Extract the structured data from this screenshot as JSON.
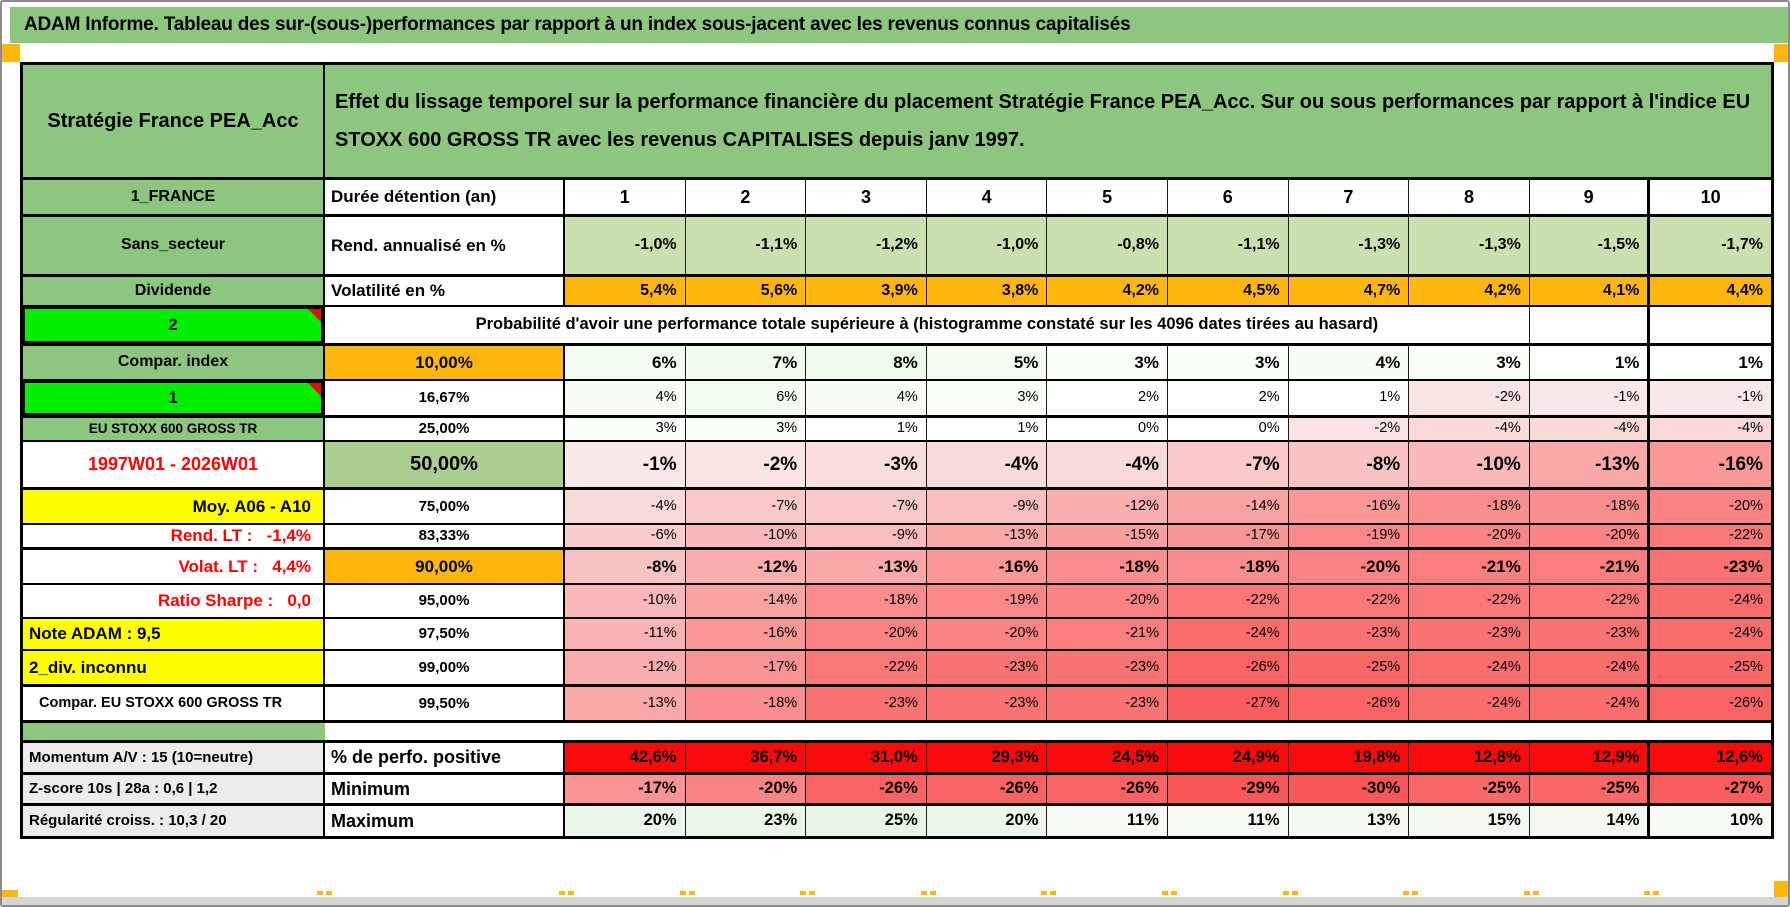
{
  "palette": {
    "green": "#8DC67E",
    "bright_green": "#00F000",
    "orange": "#FFB60D",
    "yellow": "#FFFF00",
    "red_row": "#FA0A0A",
    "red_text": "#FF0000",
    "light_green_row": "#CBE0AF",
    "mid_green_cell": "#A9CE90",
    "gray_label": "#EDEBEB"
  },
  "title": "ADAM Informe. Tableau des sur-(sous-)performances par rapport à un index sous-jacent avec les revenus connus capitalisés",
  "header": {
    "strategy": "Stratégie France PEA_Acc",
    "description": "Effet du lissage temporel sur la performance financière du placement Stratégie France PEA_Acc. Sur ou sous performances par rapport à l'indice EU STOXX 600 GROSS TR avec les revenus CAPITALISES depuis janv 1997."
  },
  "table": {
    "rows": [
      {
        "label": "1_FRANCE",
        "labelStyle": "green",
        "col2": "Durée détention (an)",
        "col2Style": "plain-left",
        "cellStyle": "duration",
        "values": [
          "1",
          "2",
          "3",
          "4",
          "5",
          "6",
          "7",
          "8",
          "9",
          "10"
        ]
      },
      {
        "label": "Sans_secteur",
        "labelStyle": "green",
        "col2": "Rend. annualisé en %",
        "col2Style": "plain-left",
        "cellStyle": "lightgreen",
        "values": [
          "-1,0%",
          "-1,1%",
          "-1,2%",
          "-1,0%",
          "-0,8%",
          "-1,1%",
          "-1,3%",
          "-1,3%",
          "-1,5%",
          "-1,7%"
        ]
      },
      {
        "label": "Dividende",
        "labelStyle": "green",
        "col2": "Volatilité en %",
        "col2Style": "plain-left",
        "cellStyle": "orange",
        "values": [
          "5,4%",
          "5,6%",
          "3,9%",
          "3,8%",
          "4,2%",
          "4,5%",
          "4,7%",
          "4,2%",
          "4,1%",
          "4,4%"
        ]
      },
      {
        "label": "2",
        "labelStyle": "bright",
        "span": "Probabilité d'avoir une performance totale supérieure à (histogramme constaté sur les 4096 dates tirées au hasard)",
        "values": [
          "",
          ""
        ]
      },
      {
        "label": "Compar. index",
        "labelStyle": "green",
        "col2": "10,00%",
        "col2Style": "orange-bold",
        "cellStyle": "tint-bold",
        "values": [
          6,
          7,
          8,
          5,
          3,
          3,
          4,
          3,
          1,
          1
        ]
      },
      {
        "label": "1",
        "labelStyle": "bright",
        "col2": "16,67%",
        "col2Style": "plain",
        "cellStyle": "tint",
        "values": [
          4,
          6,
          4,
          3,
          2,
          2,
          1,
          -2,
          -1,
          -1
        ]
      },
      {
        "label": "EU STOXX 600 GROSS TR",
        "labelStyle": "green-small",
        "col2": "25,00%",
        "col2Style": "plain",
        "cellStyle": "tint",
        "values": [
          3,
          3,
          1,
          1,
          0,
          0,
          -2,
          -4,
          -4,
          -4
        ]
      },
      {
        "label": "1997W01 - 2026W01",
        "labelStyle": "red-center",
        "col2": "50,00%",
        "col2Style": "green-big",
        "cellStyle": "tint-big",
        "values": [
          -1,
          -2,
          -3,
          -4,
          -4,
          -7,
          -8,
          -10,
          -13,
          -16
        ]
      },
      {
        "label": "Moy. A06 - A10",
        "labelStyle": "yellow-right",
        "col2": "75,00%",
        "col2Style": "plain",
        "cellStyle": "tint",
        "values": [
          -4,
          -7,
          -7,
          -9,
          -12,
          -14,
          -16,
          -18,
          -18,
          -20
        ]
      },
      {
        "label": "Rend. LT :   -1,4%",
        "labelStyle": "red-right",
        "col2": "83,33%",
        "col2Style": "plain",
        "cellStyle": "tint",
        "values": [
          -6,
          -10,
          -9,
          -13,
          -15,
          -17,
          -19,
          -20,
          -20,
          -22
        ]
      },
      {
        "label": "Volat. LT :   4,4%",
        "labelStyle": "red-right",
        "col2": "90,00%",
        "col2Style": "orange-bold",
        "cellStyle": "tint-bold",
        "values": [
          -8,
          -12,
          -13,
          -16,
          -18,
          -18,
          -20,
          -21,
          -21,
          -23
        ]
      },
      {
        "label": "Ratio Sharpe :   0,0",
        "labelStyle": "red-right",
        "col2": "95,00%",
        "col2Style": "plain",
        "cellStyle": "tint",
        "values": [
          -10,
          -14,
          -18,
          -19,
          -20,
          -22,
          -22,
          -22,
          -22,
          -24
        ]
      },
      {
        "label": "Note ADAM : 9,5",
        "labelStyle": "yellow-left",
        "col2": "97,50%",
        "col2Style": "plain",
        "cellStyle": "tint",
        "values": [
          -11,
          -16,
          -20,
          -20,
          -21,
          -24,
          -23,
          -23,
          -23,
          -24
        ]
      },
      {
        "label": "2_div. inconnu",
        "labelStyle": "yellow-left",
        "col2": "99,00%",
        "col2Style": "plain",
        "cellStyle": "tint",
        "values": [
          -12,
          -17,
          -22,
          -23,
          -23,
          -26,
          -25,
          -24,
          -24,
          -25
        ]
      },
      {
        "label": "Compar. EU STOXX 600 GROSS TR",
        "labelStyle": "plain-left",
        "col2": "99,50%",
        "col2Style": "plain",
        "cellStyle": "tint",
        "values": [
          -13,
          -18,
          -23,
          -23,
          -23,
          -27,
          -26,
          -24,
          -24,
          -26
        ]
      },
      {
        "separator": true
      },
      {
        "label": "Momentum A/V : 15 (10=neutre)",
        "labelStyle": "gray",
        "col2": "% de perfo. positive",
        "col2Style": "plain-left-big",
        "cellStyle": "red",
        "values": [
          "42,6%",
          "36,7%",
          "31,0%",
          "29,3%",
          "24,5%",
          "24,9%",
          "19,8%",
          "12,8%",
          "12,9%",
          "12,6%"
        ]
      },
      {
        "label": "Z-score 10s | 28a : 0,6 | 1,2",
        "labelStyle": "gray",
        "col2": "Minimum",
        "col2Style": "plain-left-big",
        "cellStyle": "min",
        "values": [
          -17,
          -20,
          -26,
          -26,
          -26,
          -29,
          -30,
          -25,
          -25,
          -27
        ]
      },
      {
        "label": "Régularité croiss. : 10,3 / 20",
        "labelStyle": "gray",
        "col2": "Maximum",
        "col2Style": "plain-left-big",
        "cellStyle": "max",
        "values": [
          20,
          23,
          25,
          20,
          11,
          11,
          13,
          15,
          14,
          10
        ]
      }
    ]
  }
}
